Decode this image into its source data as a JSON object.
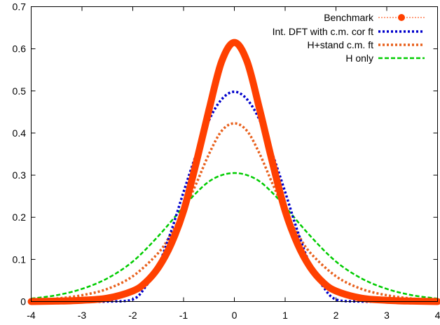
{
  "chart_data": {
    "type": "line",
    "title": "",
    "xlabel": "",
    "ylabel": "",
    "xlim": [
      -4,
      4
    ],
    "ylim": [
      0,
      0.7
    ],
    "grid": false,
    "legend_position": "top-right",
    "x_ticks": [
      "-4",
      "-3",
      "-2",
      "-1",
      "0",
      "1",
      "2",
      "3",
      "4"
    ],
    "y_ticks": [
      "0",
      "0.1",
      "0.2",
      "0.3",
      "0.4",
      "0.5",
      "0.6",
      "0.7"
    ],
    "series": [
      {
        "name": "Benchmark",
        "color": "#ff4000",
        "style": "dotted-markers",
        "x": [
          -4.0,
          -3.5,
          -3.0,
          -2.5,
          -2.0,
          -1.75,
          -1.5,
          -1.25,
          -1.0,
          -0.75,
          -0.5,
          -0.25,
          0.0,
          0.25,
          0.5,
          0.75,
          1.0,
          1.25,
          1.5,
          1.75,
          2.0,
          2.5,
          3.0,
          3.5,
          4.0
        ],
        "y": [
          0.0,
          0.001,
          0.003,
          0.008,
          0.025,
          0.045,
          0.08,
          0.135,
          0.215,
          0.33,
          0.455,
          0.57,
          0.615,
          0.57,
          0.455,
          0.33,
          0.215,
          0.135,
          0.08,
          0.045,
          0.025,
          0.008,
          0.003,
          0.001,
          0.0
        ]
      },
      {
        "name": "Int. DFT with c.m. cor ft",
        "color": "#0000cc",
        "style": "dotted",
        "x": [
          -4.0,
          -3.0,
          -2.5,
          -2.0,
          -1.75,
          -1.5,
          -1.25,
          -1.0,
          -0.75,
          -0.5,
          -0.25,
          0.0,
          0.25,
          0.5,
          0.75,
          1.0,
          1.25,
          1.5,
          1.75,
          2.0,
          2.5,
          3.0,
          4.0
        ],
        "y": [
          0.0,
          0.0,
          0.0,
          0.005,
          0.035,
          0.085,
          0.165,
          0.26,
          0.35,
          0.43,
          0.48,
          0.498,
          0.48,
          0.43,
          0.35,
          0.26,
          0.165,
          0.085,
          0.035,
          0.005,
          0.0,
          0.0,
          0.0
        ]
      },
      {
        "name": "H+stand c.m. ft",
        "color": "#e8601c",
        "style": "dotted",
        "x": [
          -4.0,
          -3.5,
          -3.0,
          -2.5,
          -2.0,
          -1.5,
          -1.25,
          -1.0,
          -0.75,
          -0.5,
          -0.25,
          0.0,
          0.25,
          0.5,
          0.75,
          1.0,
          1.25,
          1.5,
          2.0,
          2.5,
          3.0,
          3.5,
          4.0
        ],
        "y": [
          0.003,
          0.007,
          0.015,
          0.03,
          0.06,
          0.115,
          0.16,
          0.215,
          0.28,
          0.35,
          0.405,
          0.423,
          0.405,
          0.35,
          0.28,
          0.215,
          0.16,
          0.115,
          0.06,
          0.03,
          0.015,
          0.007,
          0.003
        ]
      },
      {
        "name": "H only",
        "color": "#00cc00",
        "style": "dashed",
        "x": [
          -4.0,
          -3.5,
          -3.0,
          -2.5,
          -2.0,
          -1.5,
          -1.0,
          -0.75,
          -0.5,
          -0.25,
          0.0,
          0.25,
          0.5,
          0.75,
          1.0,
          1.5,
          2.0,
          2.5,
          3.0,
          3.5,
          4.0
        ],
        "y": [
          0.007,
          0.015,
          0.03,
          0.055,
          0.095,
          0.155,
          0.225,
          0.258,
          0.285,
          0.3,
          0.305,
          0.3,
          0.285,
          0.258,
          0.225,
          0.155,
          0.095,
          0.055,
          0.03,
          0.015,
          0.007
        ]
      }
    ]
  }
}
